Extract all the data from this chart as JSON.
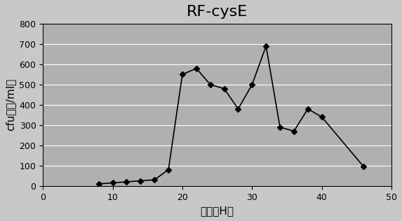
{
  "title": "RF-cysE",
  "xlabel": "时间（H）",
  "ylabel": "cfu（亿/ml）",
  "x": [
    8,
    10,
    12,
    14,
    16,
    18,
    20,
    22,
    24,
    26,
    28,
    30,
    32,
    34,
    36,
    38,
    40,
    46
  ],
  "y": [
    10,
    15,
    20,
    25,
    30,
    80,
    550,
    580,
    500,
    480,
    380,
    500,
    690,
    290,
    270,
    380,
    340,
    95
  ],
  "xlim": [
    0,
    50
  ],
  "ylim": [
    0,
    800
  ],
  "xticks": [
    0,
    10,
    20,
    30,
    40,
    50
  ],
  "yticks": [
    0,
    100,
    200,
    300,
    400,
    500,
    600,
    700,
    800
  ],
  "line_color": "#000000",
  "marker": "D",
  "marker_size": 4,
  "bg_color": "#c8c8c8",
  "plot_bg_color": "#b0b0b0",
  "title_fontsize": 16,
  "label_fontsize": 11
}
